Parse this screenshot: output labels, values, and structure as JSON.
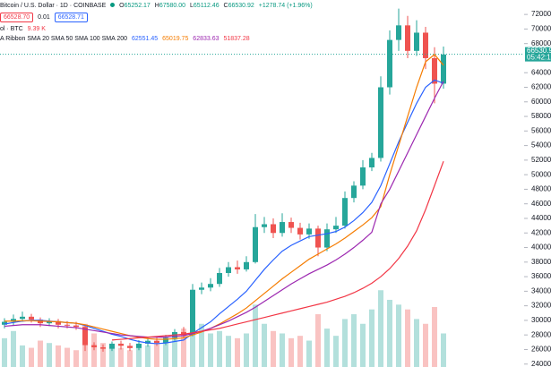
{
  "header": {
    "symbol": "Bitcoin / U.S. Dollar · 1D · COINBASE",
    "ohlc": [
      "O",
      "65252.17",
      "H",
      "67580.00",
      "L",
      "65112.46",
      "C",
      "66530.92",
      "+1278.74 (+1.96%)"
    ],
    "sell": "66528.70",
    "spread": "0.01",
    "buy": "66528.71",
    "volume_label": "ol · BTC",
    "volume_value": "9.39 K",
    "ma_label": "A Ribbon SMA 20 SMA 50 SMA 100 SMA 200",
    "ma_values": [
      "62551.45",
      "65019.75",
      "62833.63",
      "51837.28"
    ],
    "price_label": "66530.9",
    "timer_label": "05:42:1"
  },
  "chart_data": {
    "type": "candlestick",
    "up_color": "#26a69a",
    "down_color": "#ef5350",
    "last_price": 66530.92,
    "open": [
      29400,
      29800,
      30200,
      30500,
      30100,
      29600,
      29900,
      29400,
      29300,
      29100,
      26600,
      26300,
      26100,
      26800,
      26500,
      26200,
      26800,
      27200,
      26900,
      27600,
      28400,
      28000,
      34200,
      34500,
      35000,
      36500,
      37300,
      37000,
      38000,
      42800,
      43200,
      42000,
      43500,
      42700,
      41800,
      42600,
      40000,
      42500,
      43000,
      46800,
      48500,
      51000,
      52300,
      62000,
      68500,
      70500,
      67000,
      69500,
      66000,
      62500
    ],
    "high": [
      30300,
      30800,
      31200,
      30900,
      30400,
      30300,
      30200,
      29900,
      29800,
      29400,
      27000,
      26700,
      27100,
      27200,
      26900,
      27300,
      27600,
      27700,
      28000,
      28800,
      29100,
      35000,
      35200,
      35800,
      37200,
      38000,
      38200,
      38800,
      44600,
      44200,
      44000,
      44700,
      44100,
      43400,
      43300,
      43000,
      43300,
      44200,
      47700,
      49100,
      52000,
      53000,
      63500,
      69800,
      72800,
      71800,
      71200,
      70300,
      67500,
      67600
    ],
    "low": [
      28900,
      29300,
      29800,
      29700,
      29100,
      29200,
      28900,
      28900,
      28700,
      25800,
      25900,
      25700,
      25800,
      26000,
      25800,
      25900,
      26400,
      26500,
      26600,
      27200,
      27500,
      27800,
      33600,
      34000,
      34600,
      36000,
      36400,
      36700,
      37800,
      42000,
      41300,
      41500,
      42000,
      41100,
      41200,
      38800,
      39500,
      42000,
      42600,
      46200,
      48000,
      50500,
      51800,
      61000,
      67000,
      66000,
      66300,
      64500,
      59800,
      61800
    ],
    "close": [
      29800,
      30200,
      30500,
      30100,
      29600,
      29900,
      29400,
      29300,
      29100,
      26600,
      26300,
      26100,
      26800,
      26500,
      26200,
      26800,
      27200,
      26900,
      27600,
      28400,
      28000,
      34200,
      34500,
      35000,
      36500,
      37300,
      37000,
      38000,
      42800,
      43200,
      42000,
      43500,
      42700,
      41800,
      42600,
      40000,
      42500,
      43000,
      46800,
      48500,
      51000,
      52300,
      62000,
      68500,
      70500,
      67000,
      69500,
      66000,
      62500,
      66500
    ],
    "series": [
      {
        "name": "SMA 20",
        "color": "#2962ff",
        "values": [
          29500,
          29700,
          29900,
          30000,
          30000,
          29900,
          29800,
          29700,
          29600,
          29300,
          28900,
          28500,
          28100,
          27800,
          27400,
          27100,
          26900,
          26800,
          26900,
          27100,
          27300,
          28200,
          29000,
          29800,
          30900,
          31900,
          32900,
          34000,
          35500,
          37000,
          38300,
          39500,
          40300,
          40900,
          41500,
          41700,
          41900,
          42200,
          42800,
          43700,
          44800,
          46200,
          48500,
          51500,
          54500,
          57200,
          59800,
          62000,
          63000,
          62551.45
        ]
      },
      {
        "name": "SMA 50",
        "color": "#f57c00",
        "values": [
          29900,
          29900,
          29950,
          29950,
          29900,
          29850,
          29800,
          29700,
          29600,
          29400,
          29100,
          28800,
          28500,
          28200,
          27900,
          27700,
          27500,
          27400,
          27400,
          27500,
          27600,
          28000,
          28400,
          28900,
          29500,
          30200,
          30900,
          31700,
          32700,
          33700,
          34700,
          35700,
          36600,
          37500,
          38400,
          39100,
          39800,
          40500,
          41300,
          42200,
          43100,
          44100,
          45600,
          50000,
          54000,
          58000,
          62000,
          65500,
          66500,
          65019.75
        ]
      },
      {
        "name": "SMA 100",
        "color": "#9c27b0",
        "values": [
          29200,
          29300,
          29400,
          29400,
          29400,
          29300,
          29200,
          29100,
          29000,
          28800,
          28600,
          28400,
          28200,
          28000,
          27900,
          27800,
          27700,
          27700,
          27700,
          27800,
          27900,
          28200,
          28500,
          28900,
          29400,
          29900,
          30500,
          31100,
          31800,
          32600,
          33400,
          34200,
          35000,
          35700,
          36400,
          37000,
          37600,
          38300,
          39100,
          40000,
          41000,
          42100,
          46000,
          48000,
          50500,
          53000,
          55500,
          58000,
          60500,
          62833.63
        ]
      },
      {
        "name": "SMA 200",
        "color": "#f23645",
        "values": [
          null,
          null,
          null,
          null,
          null,
          null,
          null,
          null,
          null,
          null,
          null,
          null,
          27300,
          27400,
          27500,
          27600,
          27700,
          27800,
          27900,
          28000,
          28100,
          28300,
          28500,
          28700,
          28900,
          29200,
          29500,
          29800,
          30100,
          30400,
          30700,
          31000,
          31300,
          31600,
          31900,
          32200,
          32500,
          32900,
          33300,
          33800,
          34400,
          35100,
          36000,
          37100,
          38500,
          40200,
          42300,
          45200,
          48500,
          51837.28
        ]
      },
      {
        "name": "Vol · BTC",
        "axis": "y2",
        "values": [
          12,
          15,
          9,
          8,
          11,
          10,
          9,
          8,
          7,
          18,
          14,
          10,
          9,
          8,
          7,
          8,
          9,
          10,
          11,
          12,
          16,
          30,
          18,
          14,
          15,
          13,
          12,
          14,
          26,
          18,
          15,
          14,
          12,
          13,
          11,
          22,
          16,
          13,
          20,
          22,
          18,
          24,
          32,
          28,
          26,
          24,
          20,
          18,
          25,
          14
        ]
      }
    ],
    "ylim": [
      22000,
      73000
    ],
    "y2lim": [
      0,
      150
    ],
    "grid": false,
    "yticks": [
      {
        "value": 24000,
        "label": "24000.00"
      },
      {
        "value": 26000,
        "label": "26000.00"
      },
      {
        "value": 28000,
        "label": "28000.00"
      },
      {
        "value": 30000,
        "label": "30000.00"
      },
      {
        "value": 32000,
        "label": "32000.00"
      },
      {
        "value": 34000,
        "label": "34000.00"
      },
      {
        "value": 36000,
        "label": "36000.00"
      },
      {
        "value": 38000,
        "label": "38000.00"
      },
      {
        "value": 40000,
        "label": "40000.00"
      },
      {
        "value": 42000,
        "label": "42000.00"
      },
      {
        "value": 44000,
        "label": "44000.00"
      },
      {
        "value": 46000,
        "label": "46000.00"
      },
      {
        "value": 48000,
        "label": "48000.00"
      },
      {
        "value": 50000,
        "label": "50000.00"
      },
      {
        "value": 52000,
        "label": "52000.00"
      },
      {
        "value": 54000,
        "label": "54000.00"
      },
      {
        "value": 56000,
        "label": "56000.00"
      },
      {
        "value": 58000,
        "label": "58000.00"
      },
      {
        "value": 60000,
        "label": "60000.00"
      },
      {
        "value": 62000,
        "label": "62000.00"
      },
      {
        "value": 64000,
        "label": "64000.00"
      },
      {
        "value": 68000,
        "label": "68000.00"
      },
      {
        "value": 70000,
        "label": "70000.00"
      },
      {
        "value": 72000,
        "label": "72000.00"
      }
    ]
  }
}
